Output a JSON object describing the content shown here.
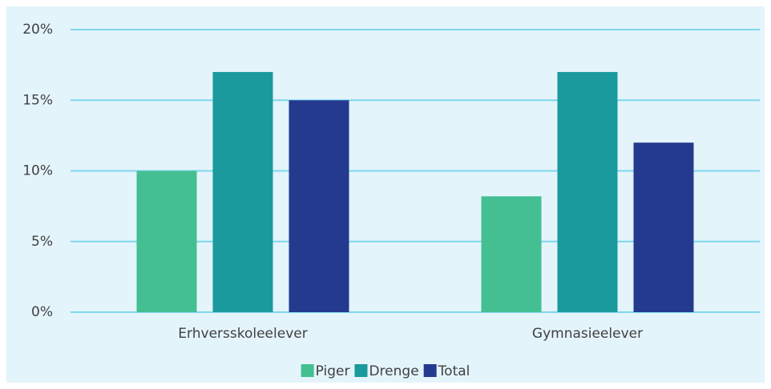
{
  "chart_data": {
    "type": "bar",
    "categories": [
      "Erhversskoleelever",
      "Gymnasieelever"
    ],
    "series": [
      {
        "name": "Piger",
        "color": "#43bf92",
        "values": [
          10,
          8.2
        ]
      },
      {
        "name": "Drenge",
        "color": "#1a9a9c",
        "values": [
          17,
          17
        ]
      },
      {
        "name": "Total",
        "color": "#233a8f",
        "values": [
          15,
          12
        ]
      }
    ],
    "ylim": [
      0,
      20
    ],
    "yticks": [
      {
        "value": 0,
        "label": "0%"
      },
      {
        "value": 5,
        "label": "5%"
      },
      {
        "value": 10,
        "label": "10%"
      },
      {
        "value": 15,
        "label": "15%"
      },
      {
        "value": 20,
        "label": "20%"
      }
    ],
    "grid": true,
    "legend": "bottom"
  }
}
